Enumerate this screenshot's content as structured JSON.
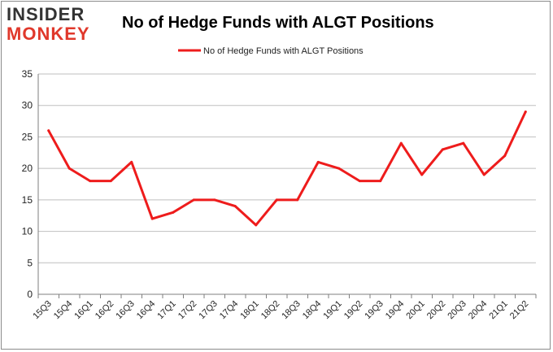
{
  "logo": {
    "line1": "INSIDER",
    "line2": "MONKEY"
  },
  "chart_data": {
    "type": "line",
    "title": "No of Hedge Funds with ALGT Positions",
    "categories": [
      "15Q3",
      "15Q4",
      "16Q1",
      "16Q2",
      "16Q3",
      "16Q4",
      "17Q1",
      "17Q2",
      "17Q3",
      "17Q4",
      "18Q1",
      "18Q2",
      "18Q3",
      "18Q4",
      "19Q1",
      "19Q2",
      "19Q3",
      "19Q4",
      "20Q1",
      "20Q2",
      "20Q3",
      "20Q4",
      "21Q1",
      "21Q2"
    ],
    "series": [
      {
        "name": "No of Hedge Funds with ALGT Positions",
        "color": "#ee1c1c",
        "values": [
          26,
          20,
          18,
          18,
          21,
          12,
          13,
          15,
          15,
          14,
          11,
          15,
          15,
          21,
          20,
          18,
          18,
          24,
          19,
          23,
          24,
          19,
          22,
          29
        ]
      }
    ],
    "ylim": [
      0,
      35
    ],
    "yticks": [
      0,
      5,
      10,
      15,
      20,
      25,
      30,
      35
    ],
    "grid": true,
    "legend_position": "top-center",
    "xlabel": "",
    "ylabel": ""
  }
}
